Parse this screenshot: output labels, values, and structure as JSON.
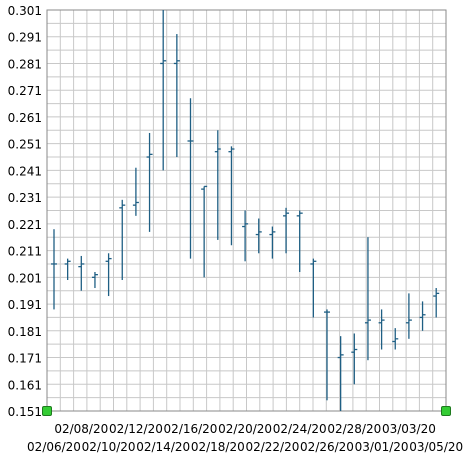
{
  "chart_data": {
    "type": "ohlc",
    "title": "",
    "xlabel": "",
    "ylabel": "",
    "ylim": [
      0.151,
      0.301
    ],
    "y_ticks": [
      "0.151",
      "0.161",
      "0.171",
      "0.181",
      "0.191",
      "0.201",
      "0.211",
      "0.221",
      "0.231",
      "0.241",
      "0.251",
      "0.261",
      "0.271",
      "0.281",
      "0.291",
      "0.301"
    ],
    "x_ticks_top": [
      "02/08/20",
      "02/12/20",
      "02/16/20",
      "02/20/20",
      "02/24/20",
      "02/28/20",
      "03/03/20"
    ],
    "x_ticks_bottom": [
      "02/06/20",
      "02/10/20",
      "02/14/20",
      "02/18/20",
      "02/22/20",
      "02/26/20",
      "03/01/20",
      "03/05/20"
    ],
    "grid": true,
    "colors": {
      "bar": "#1f5f84",
      "grid": "#c8c8c8",
      "frame": "#8a8a8a",
      "marker": "#33cc33"
    },
    "candles": [
      {
        "date": "02/06/20",
        "open": 0.206,
        "high": 0.219,
        "low": 0.189,
        "close": 0.206
      },
      {
        "date": "02/07/20",
        "open": 0.206,
        "high": 0.208,
        "low": 0.2,
        "close": 0.207
      },
      {
        "date": "02/08/20",
        "open": 0.205,
        "high": 0.209,
        "low": 0.196,
        "close": 0.206
      },
      {
        "date": "02/09/20",
        "open": 0.201,
        "high": 0.203,
        "low": 0.197,
        "close": 0.202
      },
      {
        "date": "02/10/20",
        "open": 0.207,
        "high": 0.21,
        "low": 0.194,
        "close": 0.208
      },
      {
        "date": "02/11/20",
        "open": 0.227,
        "high": 0.23,
        "low": 0.2,
        "close": 0.228
      },
      {
        "date": "02/12/20",
        "open": 0.228,
        "high": 0.242,
        "low": 0.224,
        "close": 0.229
      },
      {
        "date": "02/13/20",
        "open": 0.246,
        "high": 0.255,
        "low": 0.218,
        "close": 0.247
      },
      {
        "date": "02/14/20",
        "open": 0.281,
        "high": 0.301,
        "low": 0.241,
        "close": 0.282
      },
      {
        "date": "02/15/20",
        "open": 0.281,
        "high": 0.292,
        "low": 0.246,
        "close": 0.282
      },
      {
        "date": "02/16/20",
        "open": 0.252,
        "high": 0.268,
        "low": 0.208,
        "close": 0.252
      },
      {
        "date": "02/17/20",
        "open": 0.234,
        "high": 0.235,
        "low": 0.201,
        "close": 0.235
      },
      {
        "date": "02/18/20",
        "open": 0.248,
        "high": 0.256,
        "low": 0.215,
        "close": 0.249
      },
      {
        "date": "02/19/20",
        "open": 0.248,
        "high": 0.25,
        "low": 0.213,
        "close": 0.249
      },
      {
        "date": "02/20/20",
        "open": 0.22,
        "high": 0.226,
        "low": 0.207,
        "close": 0.221
      },
      {
        "date": "02/21/20",
        "open": 0.217,
        "high": 0.223,
        "low": 0.21,
        "close": 0.218
      },
      {
        "date": "02/22/20",
        "open": 0.217,
        "high": 0.22,
        "low": 0.208,
        "close": 0.218
      },
      {
        "date": "02/23/20",
        "open": 0.224,
        "high": 0.227,
        "low": 0.21,
        "close": 0.225
      },
      {
        "date": "02/24/20",
        "open": 0.224,
        "high": 0.226,
        "low": 0.203,
        "close": 0.225
      },
      {
        "date": "02/25/20",
        "open": 0.206,
        "high": 0.208,
        "low": 0.186,
        "close": 0.207
      },
      {
        "date": "02/26/20",
        "open": 0.188,
        "high": 0.189,
        "low": 0.155,
        "close": 0.188
      },
      {
        "date": "02/27/20",
        "open": 0.171,
        "high": 0.179,
        "low": 0.151,
        "close": 0.172
      },
      {
        "date": "02/28/20",
        "open": 0.173,
        "high": 0.18,
        "low": 0.161,
        "close": 0.174
      },
      {
        "date": "02/29/20",
        "open": 0.184,
        "high": 0.216,
        "low": 0.17,
        "close": 0.185
      },
      {
        "date": "03/01/20",
        "open": 0.184,
        "high": 0.189,
        "low": 0.174,
        "close": 0.185
      },
      {
        "date": "03/02/20",
        "open": 0.177,
        "high": 0.182,
        "low": 0.174,
        "close": 0.178
      },
      {
        "date": "03/03/20",
        "open": 0.184,
        "high": 0.195,
        "low": 0.178,
        "close": 0.185
      },
      {
        "date": "03/04/20",
        "open": 0.186,
        "high": 0.192,
        "low": 0.181,
        "close": 0.187
      },
      {
        "date": "03/05/20",
        "open": 0.194,
        "high": 0.197,
        "low": 0.186,
        "close": 0.195
      }
    ]
  }
}
